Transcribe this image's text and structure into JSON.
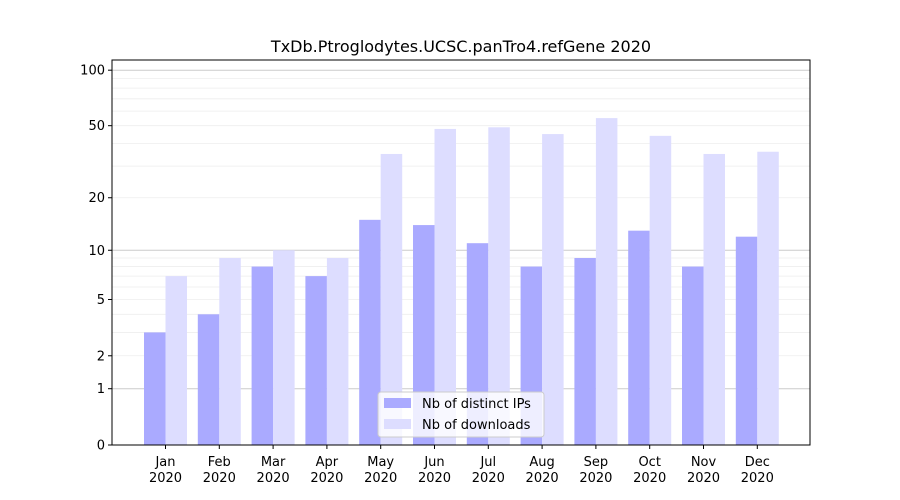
{
  "chart_data": {
    "type": "bar",
    "title": "TxDb.Ptroglodytes.UCSC.panTro4.refGene 2020",
    "xlabel": "",
    "ylabel": "",
    "yscale": "log10(1+y)",
    "ylim": [
      0,
      110
    ],
    "yticks": [
      0,
      1,
      2,
      5,
      10,
      20,
      50,
      100
    ],
    "categories": [
      "Jan\n2020",
      "Feb\n2020",
      "Mar\n2020",
      "Apr\n2020",
      "May\n2020",
      "Jun\n2020",
      "Jul\n2020",
      "Aug\n2020",
      "Sep\n2020",
      "Oct\n2020",
      "Nov\n2020",
      "Dec\n2020"
    ],
    "series": [
      {
        "name": "Nb of distinct IPs",
        "color": "#aaaaff",
        "values": [
          3,
          4,
          8,
          7,
          15,
          14,
          11,
          8,
          9,
          13,
          8,
          12
        ]
      },
      {
        "name": "Nb of downloads",
        "color": "#ddddff",
        "values": [
          7,
          9,
          10,
          9,
          35,
          48,
          49,
          45,
          55,
          44,
          35,
          36
        ]
      }
    ],
    "legend": "lower-center",
    "grid": true
  }
}
